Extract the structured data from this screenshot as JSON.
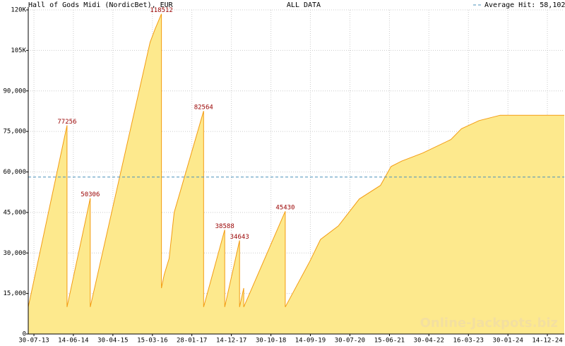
{
  "chart_data": {
    "type": "area",
    "title": "Hall of Gods Midi (NordicBet), EUR",
    "subtitle": "ALL DATA",
    "watermark": "Online-Jackpots.biz",
    "average": 58102,
    "average_label": "Average Hit: 58,102",
    "average_color": "#4a90b8",
    "color": "#fde98d",
    "line_color": "#f39c12",
    "label_color": "#990000",
    "grid": true,
    "ylim": [
      0,
      120000
    ],
    "yticks": [
      0,
      {
        "value": 15000,
        "label": "15,000"
      },
      {
        "value": 30000,
        "label": "30,000"
      },
      {
        "value": 45000,
        "label": "45,000"
      },
      {
        "value": 60000,
        "label": "60,000"
      },
      {
        "value": 75000,
        "label": "75,000"
      },
      {
        "value": 90000,
        "label": "90,000"
      },
      {
        "value": 105000,
        "label": "105K"
      },
      {
        "value": 120000,
        "label": "120K"
      }
    ],
    "xlim": [
      "14-06-13",
      "30-04-25"
    ],
    "xticks": [
      "30-07-13",
      "14-06-14",
      "30-04-15",
      "15-03-16",
      "28-01-17",
      "14-12-17",
      "30-10-18",
      "14-09-19",
      "30-07-20",
      "15-06-21",
      "30-04-22",
      "16-03-23",
      "30-01-24",
      "14-12-24"
    ],
    "x": [
      "14-06-13",
      "24-04-14",
      "24-04-14",
      "29-10-14",
      "29-10-14",
      "25-02-16",
      "06-04-16",
      "27-05-16",
      "27-05-16",
      "18-06-16",
      "28-07-16",
      "07-09-16",
      "03-05-17",
      "03-05-17",
      "21-10-17",
      "21-10-17",
      "18-02-18",
      "18-02-18",
      "24-03-18",
      "24-03-18",
      "23-02-19",
      "23-02-19",
      "11-09-19",
      "05-12-19",
      "27-04-20",
      "14-10-20",
      "03-04-21",
      "28-06-21",
      "21-09-21",
      "11-03-22",
      "25-10-22",
      "19-01-23",
      "10-06-23",
      "28-11-23",
      "30-04-25"
    ],
    "values": [
      10000,
      77256,
      10000,
      50306,
      10000,
      108000,
      113000,
      118512,
      17000,
      22000,
      28000,
      45000,
      82564,
      10000,
      38588,
      10000,
      34643,
      10000,
      17000,
      10000,
      45430,
      10000,
      27000,
      35000,
      40000,
      50000,
      55000,
      62000,
      64000,
      67000,
      72000,
      76000,
      79000,
      81000,
      81000
    ],
    "value_labels": [
      null,
      "77256",
      null,
      "50306",
      null,
      null,
      null,
      "118512",
      null,
      null,
      null,
      null,
      "82564",
      null,
      "38588",
      null,
      "34643",
      null,
      null,
      null,
      "45430",
      null,
      null,
      null,
      null,
      null,
      null,
      null,
      null,
      null,
      null,
      null,
      null,
      null,
      null
    ]
  }
}
